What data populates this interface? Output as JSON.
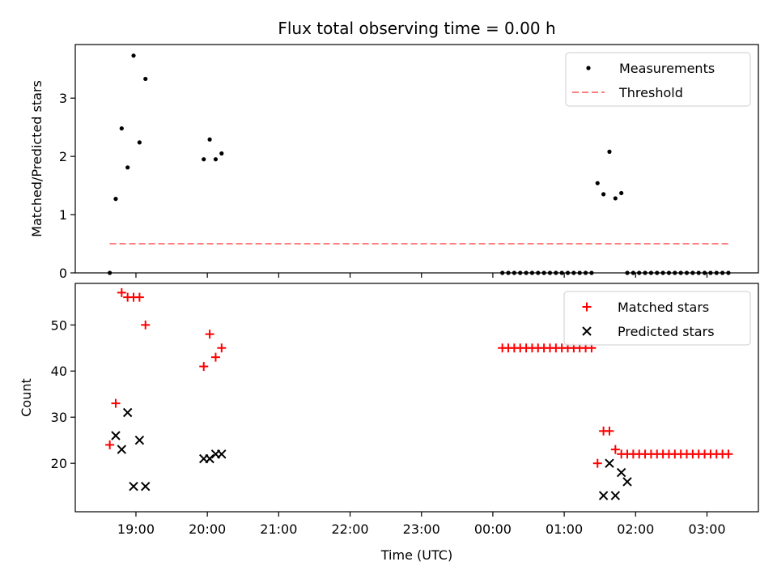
{
  "chart_data": {
    "type": "scatter",
    "title": "Flux total observing time = 0.00 h",
    "xlabel": "Time (UTC)",
    "x_ticks": [
      "19:00",
      "20:00",
      "21:00",
      "22:00",
      "23:00",
      "00:00",
      "01:00",
      "02:00",
      "03:00"
    ],
    "xlim_hours": [
      18.15,
      27.72
    ],
    "panels": [
      {
        "id": "ratio",
        "ylabel": "Matched/Predicted stars",
        "ylim": [
          0,
          3.92
        ],
        "yticks": [
          0,
          1,
          2,
          3
        ],
        "legend_position": "top-right",
        "series": [
          {
            "name": "Measurements",
            "kind": "points",
            "color": "#000000",
            "x": [
              "18:38",
              "18:43",
              "18:48",
              "18:53",
              "18:58",
              "19:03",
              "19:08",
              "19:57",
              "20:02",
              "20:07",
              "20:12",
              "00:08",
              "00:13",
              "00:18",
              "00:23",
              "00:28",
              "00:33",
              "00:38",
              "00:43",
              "00:48",
              "00:53",
              "00:58",
              "01:03",
              "01:08",
              "01:13",
              "01:18",
              "01:23",
              "01:28",
              "01:33",
              "01:38",
              "01:43",
              "01:48",
              "01:53",
              "01:58",
              "02:03",
              "02:08",
              "02:13",
              "02:18",
              "02:23",
              "02:28",
              "02:33",
              "02:38",
              "02:43",
              "02:48",
              "02:53",
              "02:58",
              "03:03",
              "03:08",
              "03:13",
              "03:18"
            ],
            "y": [
              0,
              1.27,
              2.48,
              1.81,
              3.73,
              2.24,
              3.33,
              1.95,
              2.29,
              1.95,
              2.05,
              0,
              0,
              0,
              0,
              0,
              0,
              0,
              0,
              0,
              0,
              0,
              0,
              0,
              0,
              0,
              0,
              1.54,
              1.35,
              2.08,
              1.28,
              1.37,
              0,
              0,
              0,
              0,
              0,
              0,
              0,
              0,
              0,
              0,
              0,
              0,
              0,
              0,
              0,
              0,
              0,
              0
            ]
          },
          {
            "name": "Threshold",
            "kind": "dashed-line",
            "color": "#ff7f7f",
            "x": [
              "18:38",
              "03:18"
            ],
            "y": [
              0.5,
              0.5
            ]
          }
        ]
      },
      {
        "id": "counts",
        "ylabel": "Count",
        "ylim": [
          9.5,
          59
        ],
        "yticks": [
          20,
          30,
          40,
          50
        ],
        "legend_position": "top-right",
        "series": [
          {
            "name": "Matched stars",
            "kind": "plus",
            "color": "#ff0000",
            "x": [
              "18:38",
              "18:43",
              "18:48",
              "18:53",
              "18:58",
              "19:03",
              "19:08",
              "19:57",
              "20:02",
              "20:07",
              "20:12",
              "00:08",
              "00:13",
              "00:18",
              "00:23",
              "00:28",
              "00:33",
              "00:38",
              "00:43",
              "00:48",
              "00:53",
              "00:58",
              "01:03",
              "01:08",
              "01:13",
              "01:18",
              "01:23",
              "01:28",
              "01:33",
              "01:38",
              "01:43",
              "01:48",
              "01:53",
              "01:58",
              "02:03",
              "02:08",
              "02:13",
              "02:18",
              "02:23",
              "02:28",
              "02:33",
              "02:38",
              "02:43",
              "02:48",
              "02:53",
              "02:58",
              "03:03",
              "03:08",
              "03:13",
              "03:18"
            ],
            "y": [
              24,
              33,
              57,
              56,
              56,
              56,
              50,
              41,
              48,
              43,
              45,
              45,
              45,
              45,
              45,
              45,
              45,
              45,
              45,
              45,
              45,
              45,
              45,
              45,
              45,
              45,
              45,
              20,
              27,
              27,
              23,
              22,
              22,
              22,
              22,
              22,
              22,
              22,
              22,
              22,
              22,
              22,
              22,
              22,
              22,
              22,
              22,
              22,
              22,
              22
            ]
          },
          {
            "name": "Predicted stars",
            "kind": "x",
            "color": "#000000",
            "x": [
              "18:43",
              "18:48",
              "18:53",
              "18:58",
              "19:03",
              "19:08",
              "19:57",
              "20:02",
              "20:07",
              "20:12",
              "01:33",
              "01:38",
              "01:43",
              "01:48",
              "01:53"
            ],
            "y": [
              26,
              23,
              31,
              15,
              25,
              15,
              21,
              21,
              22,
              22,
              13,
              20,
              13,
              18,
              16
            ]
          }
        ]
      }
    ]
  }
}
